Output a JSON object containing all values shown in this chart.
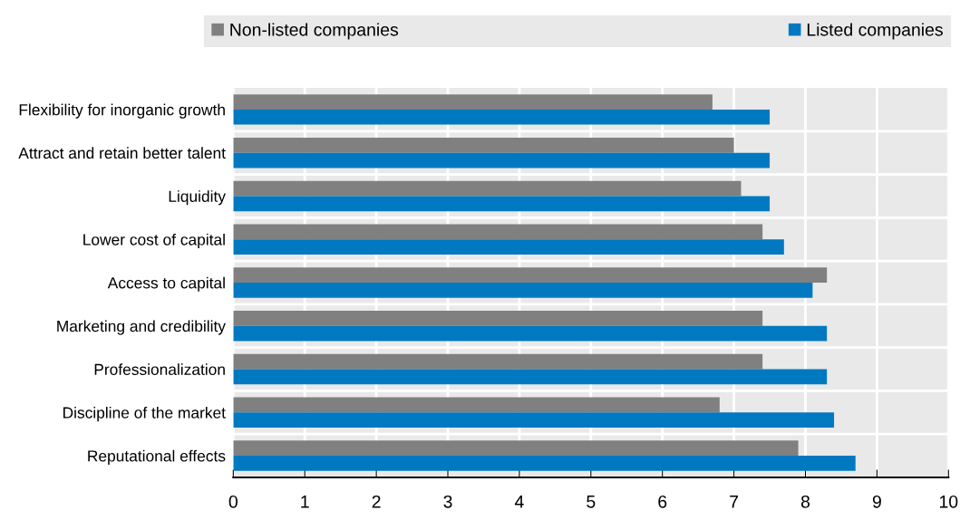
{
  "chart_data": {
    "type": "bar",
    "orientation": "horizontal",
    "categories": [
      "Flexibility for inorganic growth",
      "Attract and retain better talent",
      "Liquidity",
      "Lower cost of capital",
      "Access to capital",
      "Marketing and credibility",
      "Professionalization",
      "Discipline of the market",
      "Reputational effects"
    ],
    "series": [
      {
        "name": "Non-listed companies",
        "color": "#808080",
        "values": [
          6.7,
          7.0,
          7.1,
          7.4,
          8.3,
          7.4,
          7.4,
          6.8,
          7.9
        ]
      },
      {
        "name": "Listed companies",
        "color": "#0079c0",
        "values": [
          7.5,
          7.5,
          7.5,
          7.7,
          8.1,
          8.3,
          8.3,
          8.4,
          8.7
        ]
      }
    ],
    "xlim": [
      0,
      10
    ],
    "xticks": [
      0,
      1,
      2,
      3,
      4,
      5,
      6,
      7,
      8,
      9,
      10
    ],
    "grid": "x",
    "legend": "top"
  }
}
